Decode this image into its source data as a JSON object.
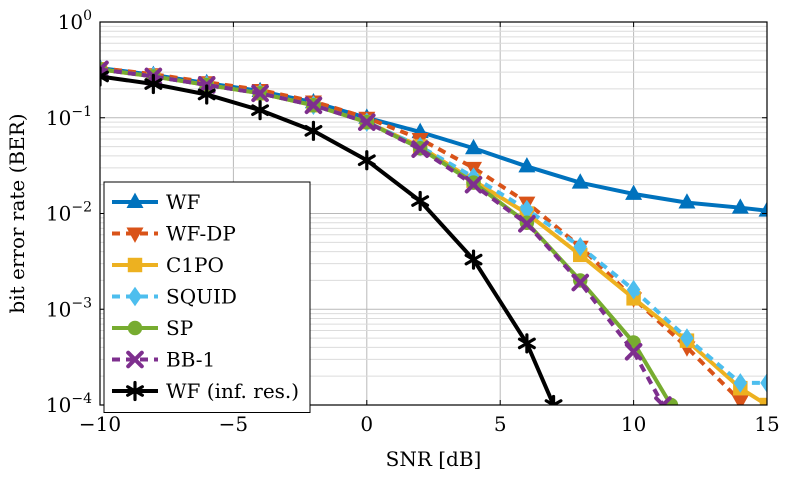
{
  "chart_data": {
    "type": "line",
    "xlabel": "SNR [dB]",
    "ylabel": "bit error rate (BER)",
    "xlim": [
      -10,
      15
    ],
    "ylim": [
      0.0001,
      1
    ],
    "yscale": "log",
    "grid": true,
    "legend_position": "bottom-left",
    "x_ticks": [
      -10,
      -5,
      0,
      5,
      10,
      15
    ],
    "x_tick_labels": [
      "−10",
      "−5",
      "0",
      "5",
      "10",
      "15"
    ],
    "y_ticks": [
      0.0001,
      0.001,
      0.01,
      0.1,
      1
    ],
    "y_tick_labels": [
      {
        "base": "10",
        "exp": "−4"
      },
      {
        "base": "10",
        "exp": "−3"
      },
      {
        "base": "10",
        "exp": "−2"
      },
      {
        "base": "10",
        "exp": "−1"
      },
      {
        "base": "10",
        "exp": "0"
      }
    ],
    "series": [
      {
        "name": "WF",
        "color": "#0072BD",
        "dash": "solid",
        "marker": "triangle-up",
        "x": [
          -10,
          -8,
          -6,
          -4,
          -2,
          0,
          2,
          4,
          6,
          8,
          10,
          12,
          14,
          15
        ],
        "y": [
          0.33,
          0.28,
          0.23,
          0.19,
          0.145,
          0.1,
          0.071,
          0.048,
          0.031,
          0.021,
          0.016,
          0.013,
          0.0115,
          0.0107
        ]
      },
      {
        "name": "WF-DP",
        "color": "#D95319",
        "dash": "dashed",
        "marker": "triangle-down",
        "x": [
          -10,
          -8,
          -6,
          -4,
          -2,
          0,
          2,
          4,
          6,
          8,
          10,
          12,
          14
        ],
        "y": [
          0.33,
          0.285,
          0.235,
          0.195,
          0.148,
          0.1,
          0.06,
          0.03,
          0.013,
          0.0045,
          0.0013,
          0.0004,
          0.00011
        ]
      },
      {
        "name": "C1PO",
        "color": "#EDB120",
        "dash": "solid",
        "marker": "square",
        "x": [
          -10,
          -8,
          -6,
          -4,
          -2,
          0,
          2,
          4,
          6,
          8,
          10,
          12,
          14,
          15
        ],
        "y": [
          0.32,
          0.27,
          0.22,
          0.18,
          0.135,
          0.09,
          0.05,
          0.022,
          0.01,
          0.0037,
          0.0013,
          0.00047,
          0.00015,
          0.0001
        ]
      },
      {
        "name": "SQUID",
        "color": "#4DBEEE",
        "dash": "dashed",
        "marker": "diamond",
        "x": [
          -10,
          -8,
          -6,
          -4,
          -2,
          0,
          2,
          4,
          6,
          8,
          10,
          12,
          14,
          15
        ],
        "y": [
          0.32,
          0.27,
          0.22,
          0.18,
          0.135,
          0.09,
          0.05,
          0.024,
          0.011,
          0.0045,
          0.0016,
          0.0005,
          0.00017,
          0.00017
        ]
      },
      {
        "name": "SP",
        "color": "#77AC30",
        "dash": "solid",
        "marker": "circle",
        "x": [
          -10,
          -8,
          -6,
          -4,
          -2,
          0,
          2,
          4,
          6,
          8,
          10,
          11.4
        ],
        "y": [
          0.32,
          0.27,
          0.22,
          0.18,
          0.135,
          0.09,
          0.048,
          0.021,
          0.008,
          0.002,
          0.00045,
          0.0001
        ]
      },
      {
        "name": "BB-1",
        "color": "#7E2F8E",
        "dash": "dashed",
        "marker": "x",
        "x": [
          -10,
          -8,
          -6,
          -4,
          -2,
          0,
          2,
          4,
          6,
          8,
          10,
          11.1
        ],
        "y": [
          0.32,
          0.27,
          0.22,
          0.18,
          0.135,
          0.09,
          0.047,
          0.02,
          0.0078,
          0.0019,
          0.00036,
          0.0001
        ]
      },
      {
        "name": "WF (inf. res.)",
        "color": "#000000",
        "dash": "solid",
        "marker": "star",
        "x": [
          -10,
          -8,
          -6,
          -4,
          -2,
          0,
          2,
          4,
          6,
          7
        ],
        "y": [
          0.27,
          0.225,
          0.175,
          0.12,
          0.073,
          0.036,
          0.0135,
          0.0033,
          0.00044,
          0.0001
        ]
      }
    ]
  }
}
